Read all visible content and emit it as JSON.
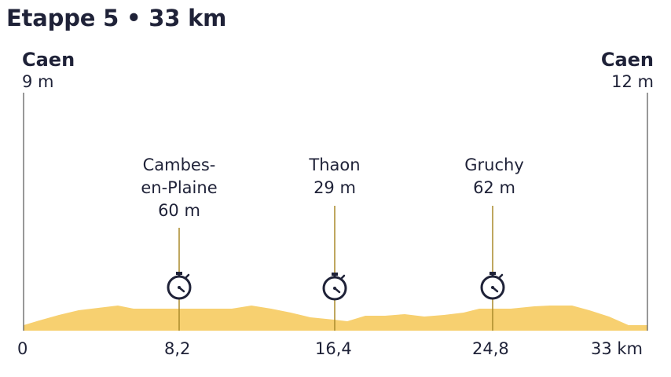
{
  "title": "Etappe 5 • 33 km",
  "start": {
    "name": "Caen",
    "altitude": "9 m"
  },
  "finish": {
    "name": "Caen",
    "altitude": "12 m"
  },
  "total_km": 33,
  "checkpoints": [
    {
      "name_lines": [
        "Cambes-",
        "en-Plaine"
      ],
      "altitude": "60 m",
      "km": 8.2
    },
    {
      "name_lines": [
        "Thaon"
      ],
      "altitude": "29 m",
      "km": 16.4
    },
    {
      "name_lines": [
        "Gruchy"
      ],
      "altitude": "62 m",
      "km": 24.8
    }
  ],
  "axis_labels": [
    {
      "km": 0,
      "label": "0"
    },
    {
      "km": 8.2,
      "label": "8,2"
    },
    {
      "km": 16.4,
      "label": "16,4"
    },
    {
      "km": 24.8,
      "label": "24,8"
    },
    {
      "km": 33,
      "label": "33 km"
    }
  ],
  "checkpoint_icon": "stopwatch-icon",
  "colors": {
    "profile_fill": "#f7d070",
    "line": "#aa8a2a",
    "text": "#1f2238",
    "axis_line": "#555555"
  }
}
